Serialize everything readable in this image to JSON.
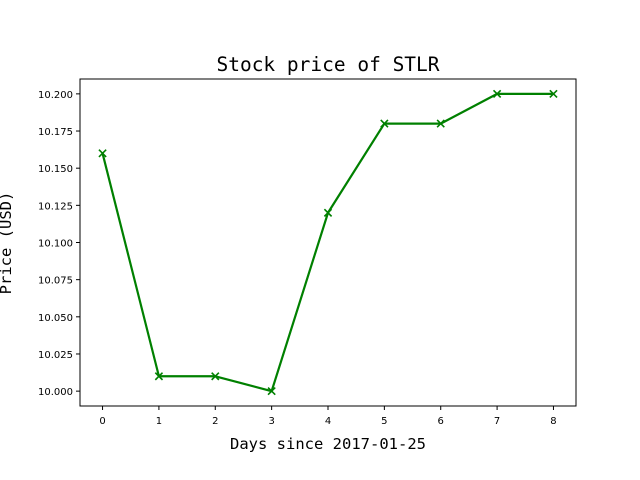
{
  "chart_data": {
    "type": "line",
    "title": "Stock price of STLR",
    "xlabel": "Days since 2017-01-25",
    "ylabel": "Price (USD)",
    "x": [
      0,
      1,
      2,
      3,
      4,
      5,
      6,
      7,
      8
    ],
    "series": [
      {
        "values": [
          10.16,
          10.01,
          10.01,
          10.0,
          10.12,
          10.18,
          10.18,
          10.2,
          10.2
        ],
        "color": "#008000",
        "marker": "x"
      }
    ],
    "xticks": [
      "0",
      "1",
      "2",
      "3",
      "4",
      "5",
      "6",
      "7",
      "8"
    ],
    "yticks": [
      "10.000",
      "10.025",
      "10.050",
      "10.075",
      "10.100",
      "10.125",
      "10.150",
      "10.175",
      "10.200"
    ],
    "xlim": [
      -0.4,
      8.4
    ],
    "ylim": [
      9.99,
      10.21
    ],
    "grid": false
  }
}
